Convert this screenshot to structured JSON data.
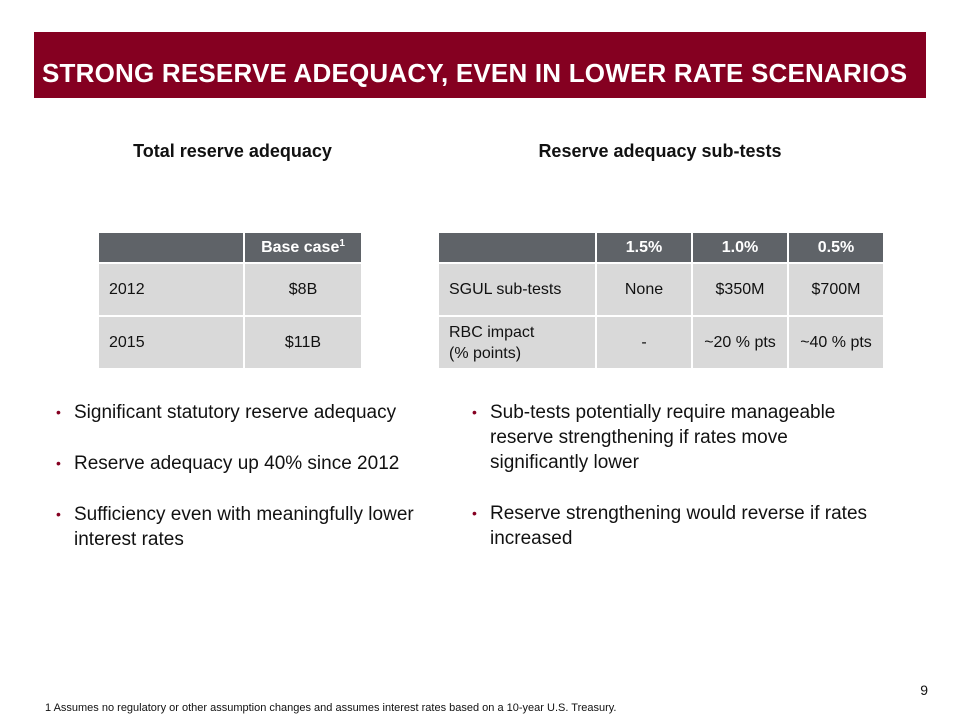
{
  "header": {
    "title": "STRONG RESERVE ADEQUACY, EVEN IN LOWER RATE SCENARIOS",
    "banner_color": "#850021"
  },
  "left": {
    "section_title": "Total reserve adequacy",
    "table": {
      "headers": [
        "",
        "Base case",
        "1"
      ],
      "rows": [
        [
          "2012",
          "$8B"
        ],
        [
          "2015",
          "$11B"
        ]
      ]
    },
    "bullets": [
      "Significant statutory reserve adequacy",
      "Reserve adequacy up 40% since 2012",
      "Sufficiency even with meaningfully lower interest rates"
    ]
  },
  "right": {
    "section_title": "Reserve adequacy sub-tests",
    "table": {
      "headers": [
        "",
        "1.5%",
        "1.0%",
        "0.5%"
      ],
      "rows": [
        {
          "label_lines": [
            "SGUL sub-tests"
          ],
          "values": [
            "None",
            "$350M",
            "$700M"
          ]
        },
        {
          "label_lines": [
            "RBC impact",
            "(% points)"
          ],
          "values": [
            "-",
            "~20 % pts",
            "~40 % pts"
          ]
        }
      ]
    },
    "bullets": [
      "Sub-tests potentially require manageable reserve strengthening if rates move significantly lower",
      "Reserve strengthening would reverse if rates increased"
    ]
  },
  "bullet_symbol": "•",
  "page_number": "9",
  "footnote": "1  Assumes no regulatory or other assumption changes and assumes interest rates based on a 10-year U.S. Treasury."
}
